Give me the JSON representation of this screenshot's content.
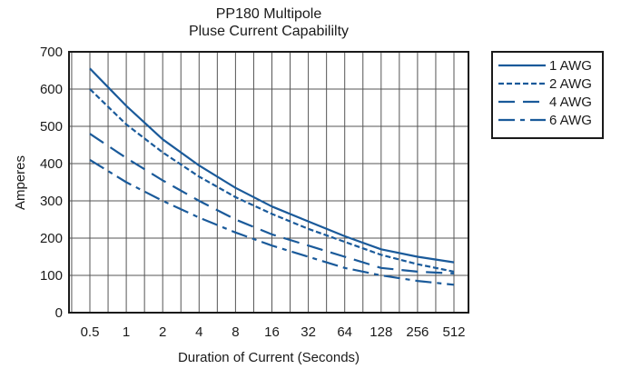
{
  "chart_data": {
    "type": "line",
    "title": "PP180 Multipole",
    "subtitle": "Pluse Current Capabililty",
    "xlabel": "Duration of Current (Seconds)",
    "ylabel": "Amperes",
    "x_scale": "log2",
    "x_ticks": [
      "0.5",
      "1",
      "2",
      "4",
      "8",
      "16",
      "32",
      "64",
      "128",
      "256",
      "512"
    ],
    "x_tick_values": [
      0.5,
      1,
      2,
      4,
      8,
      16,
      32,
      64,
      128,
      256,
      512
    ],
    "ylim": [
      0,
      700
    ],
    "y_ticks": [
      0,
      100,
      200,
      300,
      400,
      500,
      600,
      700
    ],
    "grid": true,
    "legend_position": "top-right, outside plot",
    "series_color": "#1a5a9a",
    "x": [
      0.5,
      1,
      2,
      4,
      8,
      16,
      32,
      64,
      128,
      256,
      512
    ],
    "series": [
      {
        "name": "1 AWG",
        "style": "solid",
        "values": [
          655,
          555,
          465,
          395,
          335,
          285,
          245,
          205,
          170,
          150,
          135
        ]
      },
      {
        "name": "2 AWG",
        "style": "dotted",
        "values": [
          600,
          505,
          430,
          365,
          310,
          265,
          225,
          190,
          155,
          130,
          110
        ]
      },
      {
        "name": "4 AWG",
        "style": "dashed",
        "values": [
          480,
          415,
          355,
          300,
          250,
          210,
          180,
          150,
          120,
          110,
          105
        ]
      },
      {
        "name": "6 AWG",
        "style": "dash-dot",
        "values": [
          410,
          350,
          300,
          255,
          215,
          180,
          150,
          120,
          100,
          85,
          75
        ]
      }
    ]
  }
}
